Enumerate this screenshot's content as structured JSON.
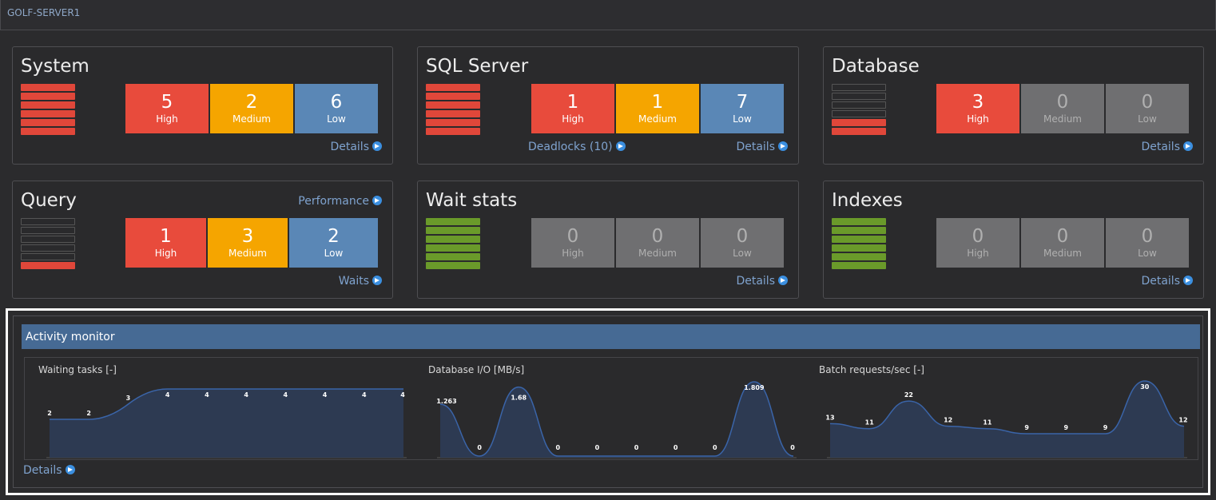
{
  "server": {
    "name": "GOLF-SERVER1"
  },
  "panels": {
    "system": {
      "title": "System",
      "level": {
        "filled": 6,
        "total": 6,
        "color": "#e0473a"
      },
      "tiles": [
        {
          "value": "5",
          "label": "High",
          "kind": "high"
        },
        {
          "value": "2",
          "label": "Medium",
          "kind": "medium"
        },
        {
          "value": "6",
          "label": "Low",
          "kind": "low"
        }
      ],
      "links": {
        "details": "Details"
      }
    },
    "sqlserver": {
      "title": "SQL Server",
      "level": {
        "filled": 6,
        "total": 6,
        "color": "#e0473a"
      },
      "tiles": [
        {
          "value": "1",
          "label": "High",
          "kind": "high"
        },
        {
          "value": "1",
          "label": "Medium",
          "kind": "medium"
        },
        {
          "value": "7",
          "label": "Low",
          "kind": "low"
        }
      ],
      "links": {
        "deadlocks": "Deadlocks (10)",
        "details": "Details"
      }
    },
    "database": {
      "title": "Database",
      "level": {
        "filled": 2,
        "total": 6,
        "color": "#e0473a"
      },
      "tiles": [
        {
          "value": "3",
          "label": "High",
          "kind": "high"
        },
        {
          "value": "0",
          "label": "Medium",
          "kind": "zero"
        },
        {
          "value": "0",
          "label": "Low",
          "kind": "zero"
        }
      ],
      "links": {
        "details": "Details"
      }
    },
    "query": {
      "title": "Query",
      "level": {
        "filled": 1,
        "total": 6,
        "color": "#e0473a"
      },
      "tiles": [
        {
          "value": "1",
          "label": "High",
          "kind": "high"
        },
        {
          "value": "3",
          "label": "Medium",
          "kind": "medium"
        },
        {
          "value": "2",
          "label": "Low",
          "kind": "low"
        }
      ],
      "links": {
        "performance": "Performance",
        "waits": "Waits"
      }
    },
    "waitstats": {
      "title": "Wait stats",
      "level": {
        "filled": 6,
        "total": 6,
        "color": "#6a9a2a"
      },
      "tiles": [
        {
          "value": "0",
          "label": "High",
          "kind": "zero"
        },
        {
          "value": "0",
          "label": "Medium",
          "kind": "zero"
        },
        {
          "value": "0",
          "label": "Low",
          "kind": "zero"
        }
      ],
      "links": {
        "details": "Details"
      }
    },
    "indexes": {
      "title": "Indexes",
      "level": {
        "filled": 6,
        "total": 6,
        "color": "#6a9a2a"
      },
      "tiles": [
        {
          "value": "0",
          "label": "High",
          "kind": "zero"
        },
        {
          "value": "0",
          "label": "Medium",
          "kind": "zero"
        },
        {
          "value": "0",
          "label": "Low",
          "kind": "zero"
        }
      ],
      "links": {
        "details": "Details"
      }
    }
  },
  "activity": {
    "title": "Activity monitor",
    "details": "Details"
  },
  "chart_data": [
    {
      "type": "area",
      "title": "Waiting  tasks [-]",
      "values": [
        2,
        2,
        3,
        4,
        4,
        4,
        4,
        4,
        4,
        4
      ],
      "labels": [
        "2",
        "2",
        "3",
        "4",
        "4",
        "4",
        "4",
        "4",
        "4",
        "4"
      ],
      "smooth": false
    },
    {
      "type": "area",
      "title": "Database I/O [MB/s]",
      "values": [
        1.263,
        0,
        1.68,
        0,
        0,
        0,
        0,
        0,
        1.809,
        0
      ],
      "labels": [
        "1.263",
        "0",
        "1.68",
        "0",
        "0",
        "0",
        "0",
        "0",
        "1.809",
        "0"
      ],
      "smooth": true
    },
    {
      "type": "area",
      "title": "Batch requests/sec [-]",
      "values": [
        13,
        11,
        22,
        12,
        11,
        9,
        9,
        9,
        30,
        12
      ],
      "labels": [
        "13",
        "11",
        "22",
        "12",
        "11",
        "9",
        "9",
        "9",
        "30",
        "12"
      ],
      "smooth": true
    }
  ]
}
